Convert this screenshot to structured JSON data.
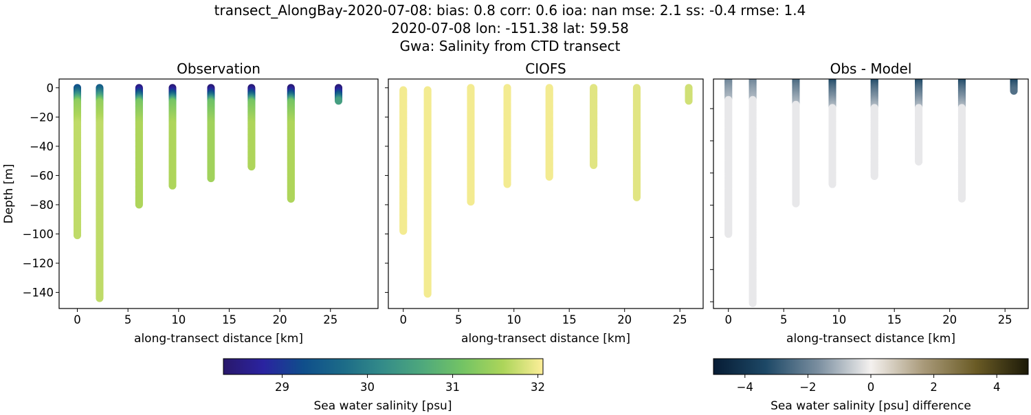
{
  "chart_data": [
    {
      "type": "scatter",
      "title": "Observation",
      "xlabel": "along-transect distance [km]",
      "ylabel": "Depth [m]",
      "xlim": [
        -1.8,
        29.7
      ],
      "ylim": [
        -151,
        6
      ],
      "xticks": [
        0,
        5,
        10,
        15,
        20,
        25
      ],
      "yticks": [
        0,
        -20,
        -40,
        -60,
        -80,
        -100,
        -120,
        -140
      ],
      "xtick_labels": [
        "0",
        "5",
        "10",
        "15",
        "20",
        "25"
      ],
      "ytick_labels": [
        "0",
        "−20",
        "−40",
        "−60",
        "−80",
        "−100",
        "−120",
        "−140"
      ],
      "colormap": "haline",
      "profiles": [
        {
          "x": 0,
          "top": 0,
          "bottom": -101,
          "surface_salinity": 29.3,
          "deep_salinity": 31.7
        },
        {
          "x": 2.2,
          "top": 0,
          "bottom": -144,
          "surface_salinity": 29.5,
          "deep_salinity": 31.7
        },
        {
          "x": 6.1,
          "top": 0,
          "bottom": -80,
          "surface_salinity": 28.5,
          "deep_salinity": 31.6
        },
        {
          "x": 9.4,
          "top": 0,
          "bottom": -67,
          "surface_salinity": 28.4,
          "deep_salinity": 31.6
        },
        {
          "x": 13.2,
          "top": 0,
          "bottom": -62,
          "surface_salinity": 28.4,
          "deep_salinity": 31.5
        },
        {
          "x": 17.2,
          "top": 0,
          "bottom": -54,
          "surface_salinity": 28.4,
          "deep_salinity": 31.6
        },
        {
          "x": 21.1,
          "top": 0,
          "bottom": -76,
          "surface_salinity": 28.4,
          "deep_salinity": 31.6
        },
        {
          "x": 25.8,
          "top": 0,
          "bottom": -9,
          "surface_salinity": 28.4,
          "deep_salinity": 31.2
        }
      ]
    },
    {
      "type": "scatter",
      "title": "CIOFS",
      "xlabel": "along-transect distance [km]",
      "xlim": [
        -1.35,
        27.1
      ],
      "ylim": [
        -151,
        6
      ],
      "xticks": [
        0,
        5,
        10,
        15,
        20,
        25
      ],
      "yticks": [
        0,
        -20,
        -40,
        -60,
        -80,
        -100,
        -120,
        -140
      ],
      "xtick_labels": [
        "0",
        "5",
        "10",
        "15",
        "20",
        "25"
      ],
      "colormap": "haline",
      "profiles": [
        {
          "x": 0,
          "top": -1.5,
          "bottom": -98,
          "surface_salinity": 32.0,
          "deep_salinity": 32.0
        },
        {
          "x": 2.2,
          "top": -1.5,
          "bottom": -141,
          "surface_salinity": 32.0,
          "deep_salinity": 32.0
        },
        {
          "x": 6.1,
          "top": 0,
          "bottom": -78,
          "surface_salinity": 32.0,
          "deep_salinity": 32.0
        },
        {
          "x": 9.4,
          "top": 0,
          "bottom": -66,
          "surface_salinity": 32.0,
          "deep_salinity": 32.0
        },
        {
          "x": 13.2,
          "top": 0,
          "bottom": -61,
          "surface_salinity": 32.0,
          "deep_salinity": 32.0
        },
        {
          "x": 17.2,
          "top": 0,
          "bottom": -53,
          "surface_salinity": 31.9,
          "deep_salinity": 31.9
        },
        {
          "x": 21.1,
          "top": 0,
          "bottom": -75,
          "surface_salinity": 31.9,
          "deep_salinity": 31.9
        },
        {
          "x": 25.8,
          "top": 0,
          "bottom": -9,
          "surface_salinity": 31.8,
          "deep_salinity": 31.8
        }
      ]
    },
    {
      "type": "scatter",
      "title": "Obs - Model",
      "xlabel": "along-transect distance [km]",
      "xlim": [
        -1.35,
        27.1
      ],
      "ylim": [
        -144.2,
        -1.6
      ],
      "xticks": [
        0,
        5,
        10,
        15,
        20,
        25
      ],
      "yticks": [
        -20,
        -40,
        -60,
        -80,
        -100,
        -120,
        -140
      ],
      "xtick_labels": [
        "0",
        "5",
        "10",
        "15",
        "20",
        "25"
      ],
      "colormap": "diff",
      "profiles": [
        {
          "x": 0,
          "top": 0,
          "bottom": -98,
          "surface_diff": -2.5,
          "deep_diff": -0.4
        },
        {
          "x": 2.2,
          "top": 0,
          "bottom": -141,
          "surface_diff": -2.5,
          "deep_diff": -0.4
        },
        {
          "x": 6.1,
          "top": 0,
          "bottom": -79,
          "surface_diff": -3.5,
          "deep_diff": -0.4
        },
        {
          "x": 9.4,
          "top": 0,
          "bottom": -67,
          "surface_diff": -4.5,
          "deep_diff": -0.4
        },
        {
          "x": 13.2,
          "top": 0,
          "bottom": -62,
          "surface_diff": -4.5,
          "deep_diff": -0.4
        },
        {
          "x": 17.2,
          "top": 0,
          "bottom": -53,
          "surface_diff": -4.5,
          "deep_diff": -0.4
        },
        {
          "x": 21.1,
          "top": 0,
          "bottom": -76,
          "surface_diff": -4.5,
          "deep_diff": -0.4
        },
        {
          "x": 25.8,
          "top": 0,
          "bottom": -9,
          "surface_diff": -4.5,
          "deep_diff": -0.6
        }
      ]
    }
  ],
  "suptitle": {
    "line1": "transect_AlongBay-2020-07-08: bias: 0.8  corr: 0.6  ioa: nan  mse: 2.1  ss: -0.4  rmse: 1.4",
    "line2": "2020-07-08 lon: -151.38 lat: 59.58",
    "line3": "Gwa: Salinity from CTD transect"
  },
  "colorbar_salinity": {
    "label": "Sea water salinity [psu]",
    "range": [
      28.31,
      32.06
    ],
    "ticks": [
      29,
      30,
      31,
      32
    ],
    "tick_labels": [
      "29",
      "30",
      "31",
      "32"
    ],
    "colors": [
      "#29186b",
      "#2a23a0",
      "#0f4e8b",
      "#1c6b88",
      "#348c89",
      "#4fa97c",
      "#74c464",
      "#acd55a",
      "#fdee99"
    ]
  },
  "colorbar_diff": {
    "label": "Sea water salinity [psu] difference",
    "range": [
      -5,
      5
    ],
    "ticks": [
      -4,
      -2,
      0,
      2,
      4
    ],
    "tick_labels": [
      "−4",
      "−2",
      "0",
      "2",
      "4"
    ],
    "colors": [
      "#071c34",
      "#1d4866",
      "#7b8fa0",
      "#f4f1ef",
      "#a99a7a",
      "#6a5b25",
      "#1c1a08"
    ]
  }
}
